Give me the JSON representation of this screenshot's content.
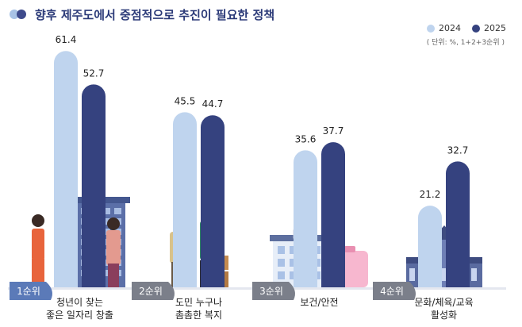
{
  "title": "향후 제주도에서 중점적으로 추진이 필요한 정책",
  "unit_note": "( 단위: %, 1+2+3순위 )",
  "legend": [
    {
      "label": "2024",
      "color": "#bfd4ee"
    },
    {
      "label": "2025",
      "color": "#35427f"
    }
  ],
  "chart_data": {
    "type": "bar",
    "title": "향후 제주도에서 중점적으로 추진이 필요한 정책",
    "categories": [
      {
        "rank": "1순위",
        "line1": "청년이 찾는",
        "line2": "좋은 일자리 창출"
      },
      {
        "rank": "2순위",
        "line1": "도민 누구나",
        "line2": "촘촘한 복지"
      },
      {
        "rank": "3순위",
        "line1": "보건/안전",
        "line2": ""
      },
      {
        "rank": "4순위",
        "line1": "문화/체육/교육",
        "line2": "활성화"
      }
    ],
    "series": [
      {
        "name": "2024",
        "color": "#bfd4ee",
        "values": [
          61.4,
          45.5,
          35.6,
          21.2
        ]
      },
      {
        "name": "2025",
        "color": "#35427f",
        "values": [
          52.7,
          44.7,
          37.7,
          32.7
        ]
      }
    ],
    "ylim": [
      0,
      70
    ],
    "grid": false,
    "legend_position": "top-right"
  }
}
